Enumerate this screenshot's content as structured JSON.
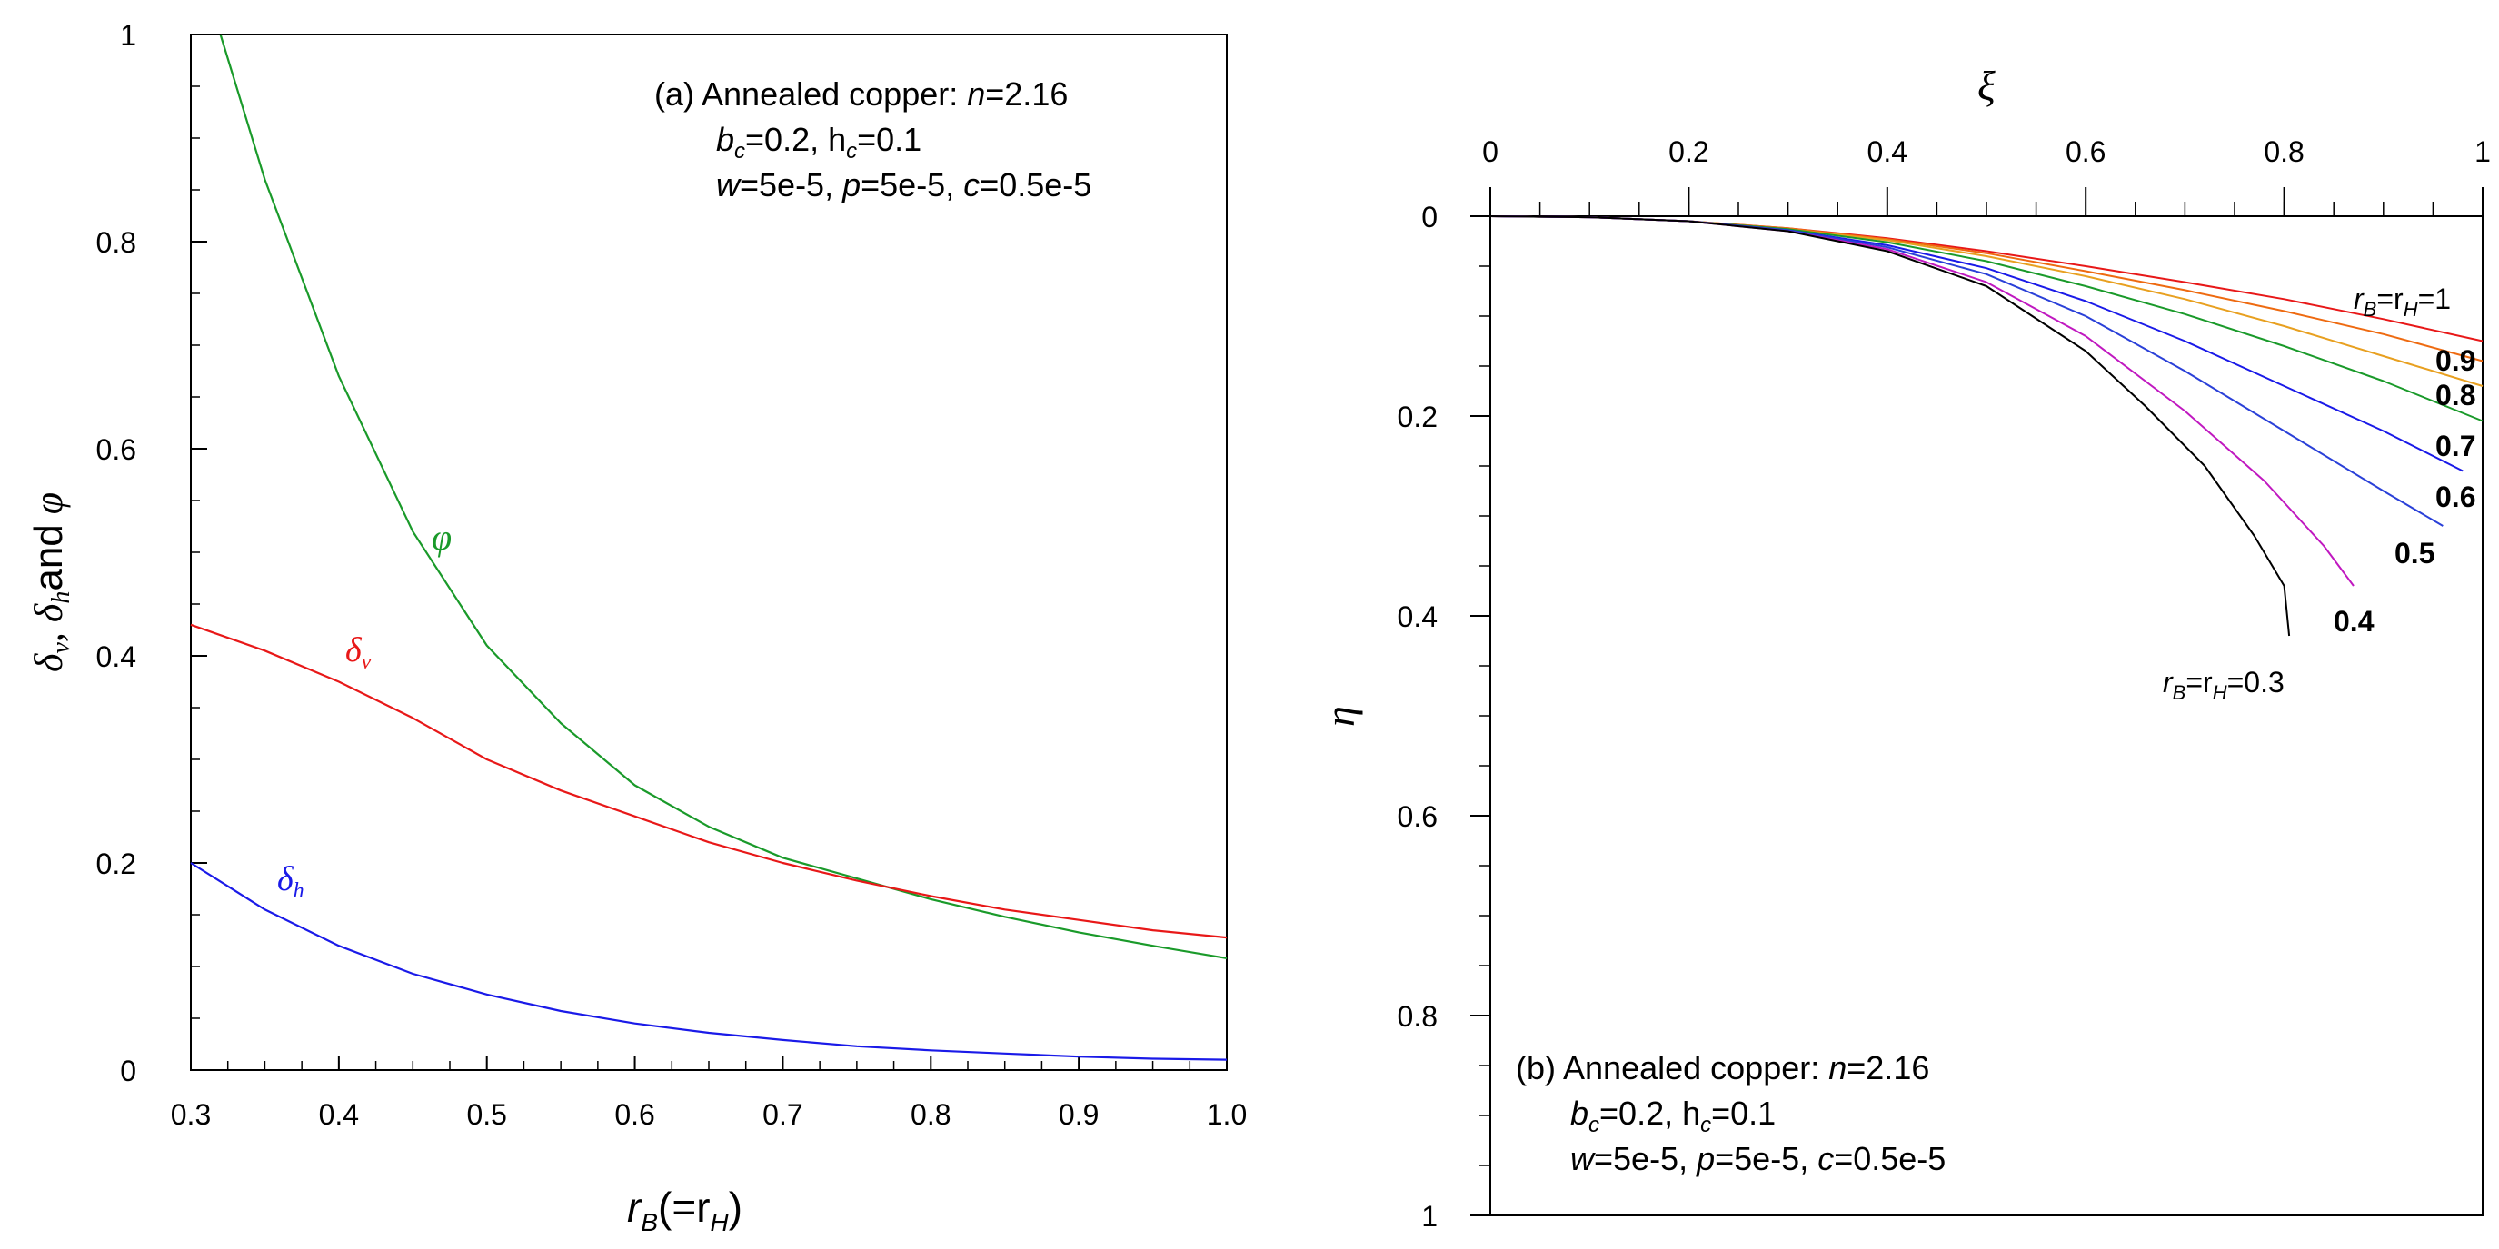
{
  "chart_data": [
    {
      "type": "line",
      "panel": "a",
      "xlabel": "r_B(=r_H)",
      "xlabel_parts": {
        "main": "r",
        "sub": "B",
        "mid": "(=r",
        "sub2": "H",
        "tail": ")"
      },
      "ylabel": "δ_v, δ_h and φ",
      "ylabel_parts": {
        "d": "δ",
        "sub_v": "v",
        "sep": ", ",
        "sub_h": "h",
        "and": "and",
        "phi": "φ"
      },
      "xlim": [
        0.3,
        1.0
      ],
      "ylim": [
        0,
        1
      ],
      "x_ticks": [
        0.3,
        0.4,
        0.5,
        0.6,
        0.7,
        0.8,
        0.9,
        1.0
      ],
      "x_tick_labels": [
        "0.3",
        "0.4",
        "0.5",
        "0.6",
        "0.7",
        "0.8",
        "0.9",
        "1.0"
      ],
      "y_ticks": [
        0,
        0.2,
        0.4,
        0.6,
        0.8,
        1
      ],
      "y_tick_labels": [
        "0",
        "0.2",
        "0.4",
        "0.6",
        "0.8",
        "1"
      ],
      "annotation": {
        "line1": "(a) Annealed copper: ",
        "line1_n": "n",
        "line1_tail": "=2.16",
        "line2": "b",
        "line2_sub1": "c",
        "line2_mid": "=0.2,  h",
        "line2_sub2": "c",
        "line2_tail": "=0.1",
        "line3_w": "w",
        "line3_a": "=5e-5,  ",
        "line3_p": "p",
        "line3_b": "=5e-5,  ",
        "line3_c": "c",
        "line3_tail": "=0.5e-5"
      },
      "series": [
        {
          "name": "φ",
          "label": "φ",
          "color": "#1a9a2a",
          "x": [
            0.32,
            0.35,
            0.4,
            0.45,
            0.5,
            0.55,
            0.6,
            0.65,
            0.7,
            0.75,
            0.8,
            0.85,
            0.9,
            0.95,
            1.0
          ],
          "y": [
            1.0,
            0.86,
            0.67,
            0.52,
            0.41,
            0.335,
            0.275,
            0.235,
            0.205,
            0.185,
            0.165,
            0.148,
            0.133,
            0.12,
            0.108
          ]
        },
        {
          "name": "δv",
          "label": "δ",
          "label_sub": "v",
          "color": "#e81818",
          "x": [
            0.3,
            0.35,
            0.4,
            0.45,
            0.5,
            0.55,
            0.6,
            0.65,
            0.7,
            0.75,
            0.8,
            0.85,
            0.9,
            0.95,
            1.0
          ],
          "y": [
            0.43,
            0.405,
            0.375,
            0.34,
            0.3,
            0.27,
            0.245,
            0.22,
            0.2,
            0.183,
            0.168,
            0.155,
            0.145,
            0.135,
            0.128
          ]
        },
        {
          "name": "δh",
          "label": "δ",
          "label_sub": "h",
          "color": "#1a1ae8",
          "x": [
            0.3,
            0.35,
            0.4,
            0.45,
            0.5,
            0.55,
            0.6,
            0.65,
            0.7,
            0.75,
            0.8,
            0.85,
            0.9,
            0.95,
            1.0
          ],
          "y": [
            0.2,
            0.155,
            0.12,
            0.093,
            0.073,
            0.057,
            0.045,
            0.036,
            0.029,
            0.023,
            0.019,
            0.016,
            0.013,
            0.011,
            0.01
          ]
        }
      ]
    },
    {
      "type": "line",
      "panel": "b",
      "xlabel": "ξ",
      "ylabel": "η",
      "xlim": [
        0,
        1
      ],
      "ylim": [
        0,
        1
      ],
      "y_inverted": true,
      "x_ticks": [
        0,
        0.2,
        0.4,
        0.6,
        0.8,
        1
      ],
      "x_tick_labels": [
        "0",
        "0.2",
        "0.4",
        "0.6",
        "0.8",
        "1"
      ],
      "y_ticks": [
        0,
        0.2,
        0.4,
        0.6,
        0.8,
        1
      ],
      "y_tick_labels": [
        "0",
        "0.2",
        "0.4",
        "0.6",
        "0.8",
        "1"
      ],
      "annotation": {
        "line1": "(b) Annealed copper: ",
        "line1_n": "n",
        "line1_tail": "=2.16",
        "line2": "b",
        "line2_sub1": "c",
        "line2_mid": "=0.2,  h",
        "line2_sub2": "c",
        "line2_tail": "=0.1",
        "line3_w": "w",
        "line3_a": "=5e-5,  ",
        "line3_p": "p",
        "line3_b": "=5e-5,  ",
        "line3_c": "c",
        "line3_tail": "=0.5e-5"
      },
      "series": [
        {
          "name": "r_B=r_H=1",
          "label": "1",
          "color": "#e81818",
          "x": [
            0,
            0.1,
            0.2,
            0.3,
            0.4,
            0.5,
            0.6,
            0.7,
            0.8,
            0.9,
            1.0
          ],
          "y": [
            0,
            0.001,
            0.005,
            0.012,
            0.022,
            0.035,
            0.05,
            0.066,
            0.083,
            0.103,
            0.125
          ]
        },
        {
          "name": "0.9",
          "label": "0.9",
          "color": "#ee6a10",
          "x": [
            0,
            0.1,
            0.2,
            0.3,
            0.4,
            0.5,
            0.6,
            0.7,
            0.8,
            0.9,
            1.0
          ],
          "y": [
            0,
            0.001,
            0.005,
            0.012,
            0.023,
            0.037,
            0.055,
            0.074,
            0.095,
            0.118,
            0.145
          ]
        },
        {
          "name": "0.8",
          "label": "0.8",
          "color": "#e8a020",
          "x": [
            0,
            0.1,
            0.2,
            0.3,
            0.4,
            0.5,
            0.6,
            0.7,
            0.8,
            0.9,
            1.0
          ],
          "y": [
            0,
            0.001,
            0.005,
            0.013,
            0.024,
            0.04,
            0.06,
            0.083,
            0.11,
            0.14,
            0.17
          ]
        },
        {
          "name": "0.7",
          "label": "0.7",
          "color": "#1a9a2a",
          "x": [
            0,
            0.1,
            0.2,
            0.3,
            0.4,
            0.5,
            0.6,
            0.7,
            0.8,
            0.9,
            1.0
          ],
          "y": [
            0,
            0.001,
            0.005,
            0.013,
            0.026,
            0.045,
            0.07,
            0.098,
            0.13,
            0.165,
            0.205
          ]
        },
        {
          "name": "0.6",
          "label": "0.6",
          "color": "#1a1ae8",
          "x": [
            0,
            0.1,
            0.2,
            0.3,
            0.4,
            0.5,
            0.6,
            0.7,
            0.8,
            0.9,
            0.98
          ],
          "y": [
            0,
            0.001,
            0.005,
            0.014,
            0.029,
            0.052,
            0.085,
            0.125,
            0.17,
            0.215,
            0.255
          ]
        },
        {
          "name": "0.5",
          "label": "0.5",
          "color": "#2a40d8",
          "x": [
            0,
            0.1,
            0.2,
            0.3,
            0.4,
            0.5,
            0.6,
            0.7,
            0.8,
            0.9,
            0.96
          ],
          "y": [
            0,
            0.001,
            0.005,
            0.014,
            0.031,
            0.058,
            0.1,
            0.155,
            0.215,
            0.275,
            0.31
          ]
        },
        {
          "name": "0.4",
          "label": "0.4",
          "color": "#c018c0",
          "x": [
            0,
            0.1,
            0.2,
            0.3,
            0.4,
            0.5,
            0.6,
            0.7,
            0.78,
            0.84,
            0.87
          ],
          "y": [
            0,
            0.001,
            0.005,
            0.015,
            0.033,
            0.066,
            0.12,
            0.195,
            0.265,
            0.33,
            0.37
          ]
        },
        {
          "name": "r_B=r_H=0.3",
          "label": "0.3",
          "color": "#000000",
          "x": [
            0,
            0.1,
            0.2,
            0.3,
            0.4,
            0.5,
            0.6,
            0.66,
            0.72,
            0.77,
            0.8,
            0.805
          ],
          "y": [
            0,
            0.001,
            0.005,
            0.015,
            0.035,
            0.07,
            0.135,
            0.19,
            0.25,
            0.32,
            0.37,
            0.42
          ]
        }
      ],
      "curve_label_main": {
        "r": "r",
        "B": "B",
        "eq": "=r",
        "H": "H",
        "eq2": "="
      }
    }
  ]
}
